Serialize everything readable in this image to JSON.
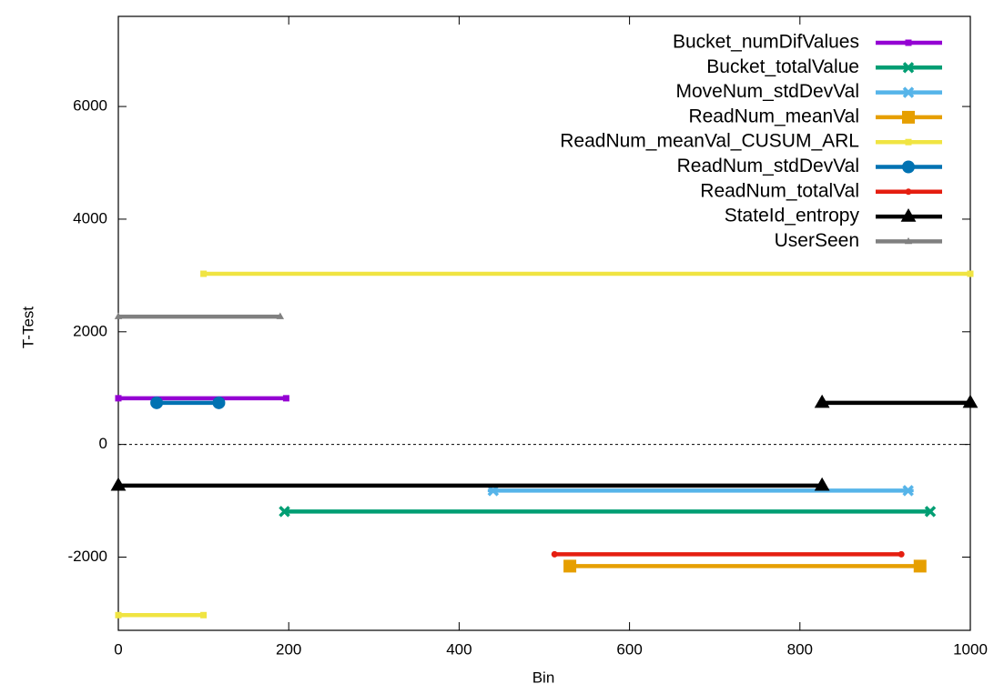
{
  "chart_data": {
    "type": "line",
    "x_label": "Bin",
    "y_label": "T-Test",
    "xlim": [
      0,
      1000
    ],
    "ylim": [
      -3300,
      7600
    ],
    "xticks": [
      0,
      200,
      400,
      600,
      800,
      1000
    ],
    "yticks": [
      -2000,
      0,
      2000,
      4000,
      6000
    ],
    "zeroaxis": true,
    "legend": "top-right",
    "series": [
      {
        "name": "Bucket_numDifValues",
        "color": "#9400d3",
        "marker": "square-small",
        "x": [
          0,
          197
        ],
        "values": [
          820,
          820
        ]
      },
      {
        "name": "Bucket_totalValue",
        "color": "#009e73",
        "marker": "cross",
        "x": [
          195,
          953
        ],
        "values": [
          -1190,
          -1190
        ]
      },
      {
        "name": "MoveNum_stdDevVal",
        "color": "#56b4e9",
        "marker": "star",
        "x": [
          440,
          927
        ],
        "values": [
          -820,
          -820
        ]
      },
      {
        "name": "ReadNum_meanVal",
        "color": "#e69f00",
        "marker": "square",
        "x": [
          530,
          941
        ],
        "values": [
          -2160,
          -2160
        ]
      },
      {
        "name": "ReadNum_meanVal_CUSUM_ARL",
        "color": "#f0e442",
        "marker": "square-small",
        "x": [
          0,
          100,
          null,
          100,
          1000
        ],
        "values": [
          -3030,
          -3030,
          null,
          3030,
          3030
        ]
      },
      {
        "name": "ReadNum_stdDevVal",
        "color": "#0072b2",
        "marker": "circle",
        "x": [
          45,
          118
        ],
        "values": [
          740,
          740
        ]
      },
      {
        "name": "ReadNum_totalVal",
        "color": "#e51e10",
        "marker": "circle-small",
        "x": [
          512,
          919
        ],
        "values": [
          -1950,
          -1950
        ]
      },
      {
        "name": "StateId_entropy",
        "color": "#000000",
        "marker": "triangle",
        "x": [
          0,
          826,
          null,
          826,
          1000
        ],
        "values": [
          -730,
          -730,
          null,
          740,
          740
        ]
      },
      {
        "name": "UserSeen",
        "color": "#808080",
        "marker": "triangle-small",
        "x": [
          0,
          190
        ],
        "values": [
          2270,
          2270
        ]
      }
    ]
  }
}
